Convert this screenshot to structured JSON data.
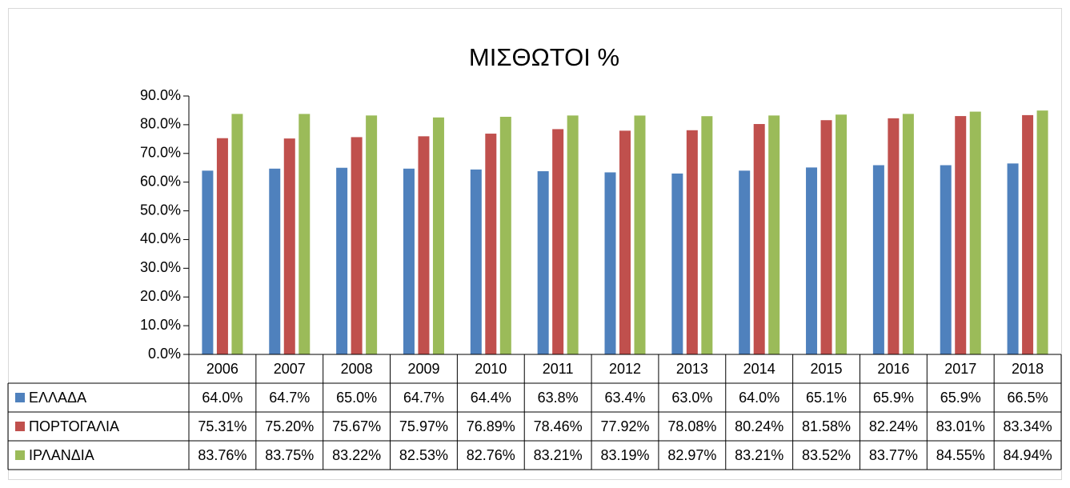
{
  "chart_data": {
    "type": "bar",
    "title": "ΜΙΣΘΩΤΟΙ %",
    "categories": [
      "2006",
      "2007",
      "2008",
      "2009",
      "2010",
      "2011",
      "2012",
      "2013",
      "2014",
      "2015",
      "2016",
      "2017",
      "2018"
    ],
    "series": [
      {
        "name": "ΕΛΛΑΔΑ",
        "color": "#4f81bd",
        "values": [
          64.0,
          64.7,
          65.0,
          64.7,
          64.4,
          63.8,
          63.4,
          63.0,
          64.0,
          65.1,
          65.9,
          65.9,
          66.5
        ],
        "value_labels": [
          "64.0%",
          "64.7%",
          "65.0%",
          "64.7%",
          "64.4%",
          "63.8%",
          "63.4%",
          "63.0%",
          "64.0%",
          "65.1%",
          "65.9%",
          "65.9%",
          "66.5%"
        ]
      },
      {
        "name": "ΠΟΡΤΟΓΑΛΙΑ",
        "color": "#c0504d",
        "values": [
          75.31,
          75.2,
          75.67,
          75.97,
          76.89,
          78.46,
          77.92,
          78.08,
          80.24,
          81.58,
          82.24,
          83.01,
          83.34
        ],
        "value_labels": [
          "75.31%",
          "75.20%",
          "75.67%",
          "75.97%",
          "76.89%",
          "78.46%",
          "77.92%",
          "78.08%",
          "80.24%",
          "81.58%",
          "82.24%",
          "83.01%",
          "83.34%"
        ]
      },
      {
        "name": "ΙΡΛΑΝΔΙΑ",
        "color": "#9bbb59",
        "values": [
          83.76,
          83.75,
          83.22,
          82.53,
          82.76,
          83.21,
          83.19,
          82.97,
          83.21,
          83.52,
          83.77,
          84.55,
          84.94
        ],
        "value_labels": [
          "83.76%",
          "83.75%",
          "83.22%",
          "82.53%",
          "82.76%",
          "83.21%",
          "83.19%",
          "82.97%",
          "83.21%",
          "83.52%",
          "83.77%",
          "84.55%",
          "84.94%"
        ]
      }
    ],
    "ylim": [
      0,
      90
    ],
    "yticks": [
      {
        "value": 0,
        "label": "0.0%"
      },
      {
        "value": 10,
        "label": "10.0%"
      },
      {
        "value": 20,
        "label": "20.0%"
      },
      {
        "value": 30,
        "label": "30.0%"
      },
      {
        "value": 40,
        "label": "40.0%"
      },
      {
        "value": 50,
        "label": "50.0%"
      },
      {
        "value": 60,
        "label": "60.0%"
      },
      {
        "value": 70,
        "label": "70.0%"
      },
      {
        "value": 80,
        "label": "80.0%"
      },
      {
        "value": 90,
        "label": "90.0%"
      }
    ],
    "grid": false
  }
}
